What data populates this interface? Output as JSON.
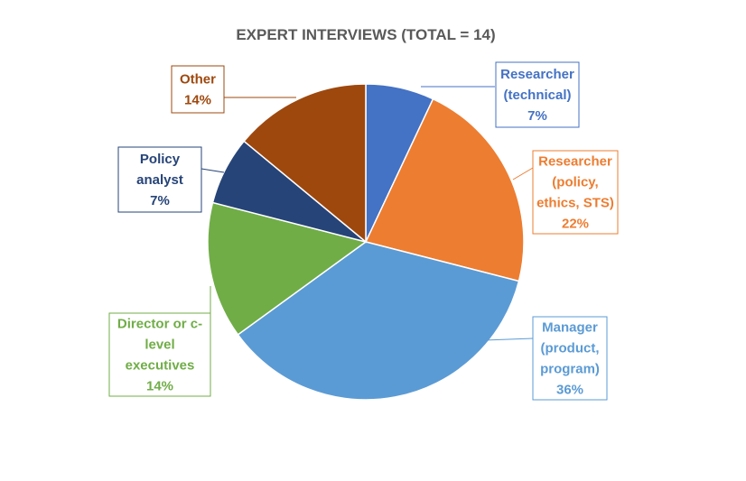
{
  "chart_data": {
    "type": "pie",
    "title": "EXPERT INTERVIEWS (TOTAL = 14)",
    "slices": [
      {
        "lines": [
          "Researcher",
          "(technical)"
        ],
        "percent_label": "7%",
        "value": 7,
        "color": "#4472C4"
      },
      {
        "lines": [
          "Researcher",
          "(policy,",
          "ethics, STS)"
        ],
        "percent_label": "22%",
        "value": 22,
        "color": "#ED7D31"
      },
      {
        "lines": [
          "Manager",
          "(product,",
          "program)"
        ],
        "percent_label": "36%",
        "value": 36,
        "color": "#5B9BD5"
      },
      {
        "lines": [
          "Director or c-",
          "level",
          "executives"
        ],
        "percent_label": "14%",
        "value": 14,
        "color": "#70AD47"
      },
      {
        "lines": [
          "Policy",
          "analyst"
        ],
        "percent_label": "7%",
        "value": 7,
        "color": "#264478"
      },
      {
        "lines": [
          "Other"
        ],
        "percent_label": "14%",
        "value": 14,
        "color": "#9E480E"
      }
    ],
    "legend": "none",
    "label_style": "callout boxes with leader lines"
  }
}
